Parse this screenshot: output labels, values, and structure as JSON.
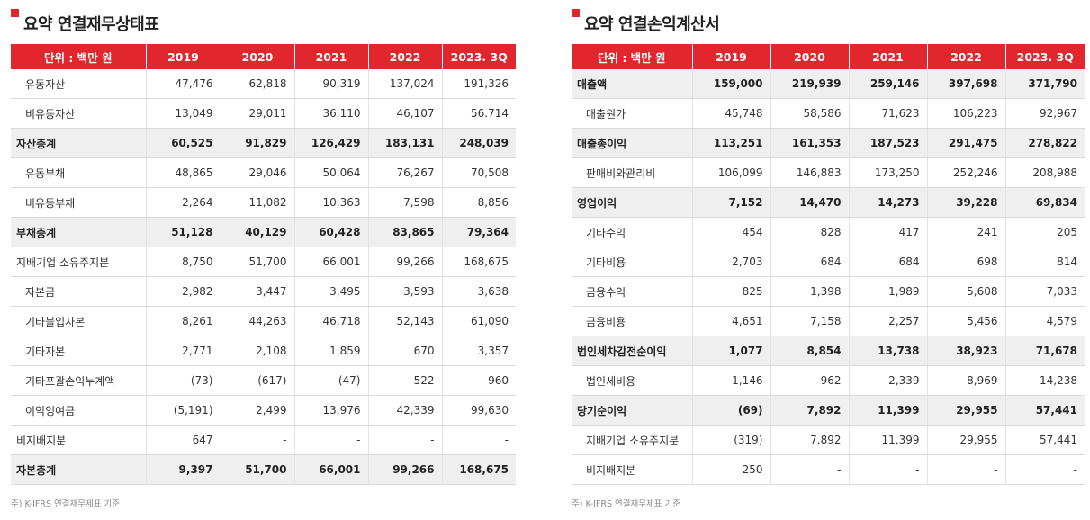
{
  "balance": {
    "title": "요약 연결재무상태표",
    "headers": [
      "단위 : 백만 원",
      "2019",
      "2020",
      "2021",
      "2022",
      "2023. 3Q"
    ],
    "rows": [
      {
        "label": "유동자산",
        "values": [
          "47,476",
          "62,818",
          "90,319",
          "137,024",
          "191,326"
        ],
        "total": false,
        "indent": true
      },
      {
        "label": "비유동자산",
        "values": [
          "13,049",
          "29,011",
          "36,110",
          "46,107",
          "56.714"
        ],
        "total": false,
        "indent": true
      },
      {
        "label": "자산총계",
        "values": [
          "60,525",
          "91,829",
          "126,429",
          "183,131",
          "248,039"
        ],
        "total": true,
        "indent": false
      },
      {
        "label": "유동부채",
        "values": [
          "48,865",
          "29,046",
          "50,064",
          "76,267",
          "70,508"
        ],
        "total": false,
        "indent": true
      },
      {
        "label": "비유동부채",
        "values": [
          "2,264",
          "11,082",
          "10,363",
          "7,598",
          "8,856"
        ],
        "total": false,
        "indent": true
      },
      {
        "label": "부채총계",
        "values": [
          "51,128",
          "40,129",
          "60,428",
          "83,865",
          "79,364"
        ],
        "total": true,
        "indent": false
      },
      {
        "label": "지배기업 소유주지분",
        "values": [
          "8,750",
          "51,700",
          "66,001",
          "99,266",
          "168,675"
        ],
        "total": false,
        "indent": false
      },
      {
        "label": "자본금",
        "values": [
          "2,982",
          "3,447",
          "3,495",
          "3,593",
          "3,638"
        ],
        "total": false,
        "indent": true
      },
      {
        "label": "기타불입자본",
        "values": [
          "8,261",
          "44,263",
          "46,718",
          "52,143",
          "61,090"
        ],
        "total": false,
        "indent": true
      },
      {
        "label": "기타자본",
        "values": [
          "2,771",
          "2,108",
          "1,859",
          "670",
          "3,357"
        ],
        "total": false,
        "indent": true
      },
      {
        "label": "기타포괄손익누계액",
        "values": [
          "(73)",
          "(617)",
          "(47)",
          "522",
          "960"
        ],
        "total": false,
        "indent": true
      },
      {
        "label": "이익잉여금",
        "values": [
          "(5,191)",
          "2,499",
          "13,976",
          "42,339",
          "99,630"
        ],
        "total": false,
        "indent": true
      },
      {
        "label": "비지배지분",
        "values": [
          "647",
          "-",
          "-",
          "-",
          "-"
        ],
        "total": false,
        "indent": false
      },
      {
        "label": "자본총계",
        "values": [
          "9,397",
          "51,700",
          "66,001",
          "99,266",
          "168,675"
        ],
        "total": true,
        "indent": false
      }
    ],
    "footnote": "주) K-IFRS 연결재무제표 기준"
  },
  "income": {
    "title": "요약 연결손익계산서",
    "headers": [
      "단위 : 백만 원",
      "2019",
      "2020",
      "2021",
      "2022",
      "2023. 3Q"
    ],
    "rows": [
      {
        "label": "매출액",
        "values": [
          "159,000",
          "219,939",
          "259,146",
          "397,698",
          "371,790"
        ],
        "total": true,
        "indent": false
      },
      {
        "label": "매출원가",
        "values": [
          "45,748",
          "58,586",
          "71,623",
          "106,223",
          "92,967"
        ],
        "total": false,
        "indent": true
      },
      {
        "label": "매출총이익",
        "values": [
          "113,251",
          "161,353",
          "187,523",
          "291,475",
          "278,822"
        ],
        "total": true,
        "indent": false
      },
      {
        "label": "판매비와관리비",
        "values": [
          "106,099",
          "146,883",
          "173,250",
          "252,246",
          "208,988"
        ],
        "total": false,
        "indent": true
      },
      {
        "label": "영업이익",
        "values": [
          "7,152",
          "14,470",
          "14,273",
          "39,228",
          "69,834"
        ],
        "total": true,
        "indent": false
      },
      {
        "label": "기타수익",
        "values": [
          "454",
          "828",
          "417",
          "241",
          "205"
        ],
        "total": false,
        "indent": true
      },
      {
        "label": "기타비용",
        "values": [
          "2,703",
          "684",
          "684",
          "698",
          "814"
        ],
        "total": false,
        "indent": true
      },
      {
        "label": "금융수익",
        "values": [
          "825",
          "1,398",
          "1,989",
          "5,608",
          "7,033"
        ],
        "total": false,
        "indent": true
      },
      {
        "label": "금융비용",
        "values": [
          "4,651",
          "7,158",
          "2,257",
          "5,456",
          "4,579"
        ],
        "total": false,
        "indent": true
      },
      {
        "label": "법인세차감전순이익",
        "values": [
          "1,077",
          "8,854",
          "13,738",
          "38,923",
          "71,678"
        ],
        "total": true,
        "indent": false
      },
      {
        "label": "법인세비용",
        "values": [
          "1,146",
          "962",
          "2,339",
          "8,969",
          "14,238"
        ],
        "total": false,
        "indent": true
      },
      {
        "label": "당기순이익",
        "values": [
          "(69)",
          "7,892",
          "11,399",
          "29,955",
          "57,441"
        ],
        "total": true,
        "indent": false
      },
      {
        "label": "지배기업 소유주지분",
        "values": [
          "(319)",
          "7,892",
          "11,399",
          "29,955",
          "57,441"
        ],
        "total": false,
        "indent": true
      },
      {
        "label": "비지배지분",
        "values": [
          "250",
          "-",
          "-",
          "-",
          "-"
        ],
        "total": false,
        "indent": true
      }
    ],
    "footnote": "주) K-IFRS 연결재무제표 기준"
  }
}
